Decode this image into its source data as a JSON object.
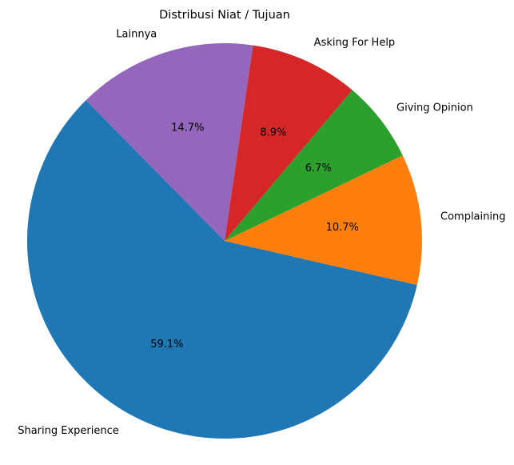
{
  "chart_data": {
    "type": "pie",
    "title": "Distribusi Niat / Tujuan",
    "categories": [
      "Sharing Experience",
      "Complaining",
      "Giving Opinion",
      "Asking For Help",
      "Lainnya"
    ],
    "values": [
      59.1,
      10.7,
      6.7,
      8.9,
      14.7
    ],
    "value_labels": [
      "59.1%",
      "10.7%",
      "6.7%",
      "8.9%",
      "14.7%"
    ],
    "colors": [
      "#1f77b4",
      "#ff7f0e",
      "#2ca02c",
      "#d62728",
      "#9467bd"
    ],
    "legend": "none"
  }
}
